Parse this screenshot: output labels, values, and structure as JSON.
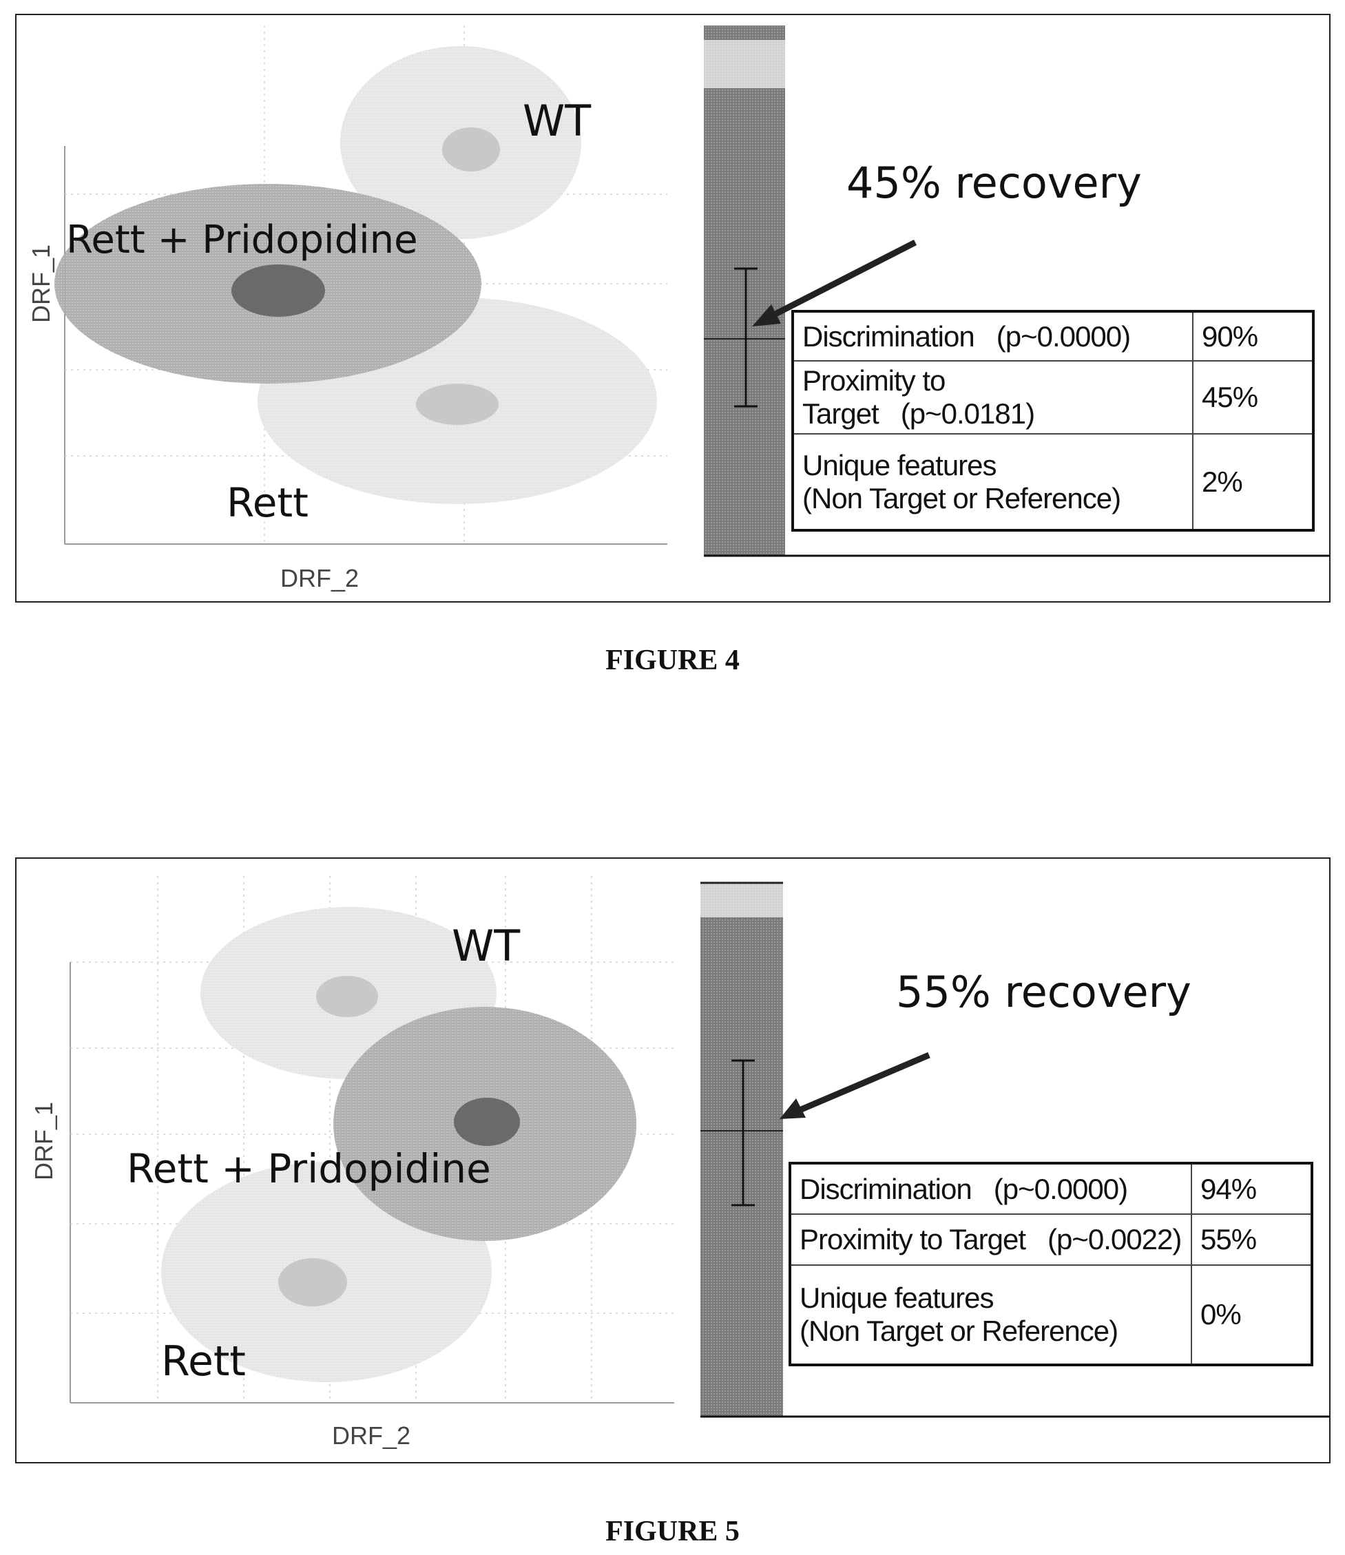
{
  "chart_data": [
    {
      "type": "scatter",
      "figure": "FIGURE 4",
      "xlabel": "DRF_2",
      "ylabel": "DRF_1",
      "clusters": [
        {
          "name": "WT"
        },
        {
          "name": "Rett + Pridopidine"
        },
        {
          "name": "Rett"
        }
      ],
      "recovery_label": "45% recovery",
      "recovery_percent": 45,
      "table": [
        {
          "label": "Discrimination",
          "p": "(p~0.0000)",
          "value": "90%"
        },
        {
          "label": "Proximity to Target",
          "p": "(p~0.0181)",
          "value": "45%"
        },
        {
          "label": "Unique features",
          "label2": "(Non Target or Reference)",
          "value": "2%"
        }
      ]
    },
    {
      "type": "scatter",
      "figure": "FIGURE 5",
      "xlabel": "DRF_2",
      "ylabel": "DRF_1",
      "clusters": [
        {
          "name": "WT"
        },
        {
          "name": "Rett + Pridopidine"
        },
        {
          "name": "Rett"
        }
      ],
      "recovery_label": "55% recovery",
      "recovery_percent": 55,
      "table": [
        {
          "label": "Discrimination",
          "p": "(p~0.0000)",
          "value": "94%"
        },
        {
          "label": "Proximity to Target",
          "p": "(p~0.0022)",
          "value": "55%"
        },
        {
          "label": "Unique features",
          "label2": "(Non Target or Reference)",
          "value": "0%"
        }
      ]
    }
  ],
  "colors": {
    "light_cluster": "#e6e6e6",
    "light_core": "#c8c8c8",
    "treated_cluster": "#aaaaaa",
    "treated_core": "#6a6a6a",
    "bar_dark": "#7a7a7a",
    "bar_light": "#d2d2d2",
    "grid": "#bbbbbb"
  }
}
